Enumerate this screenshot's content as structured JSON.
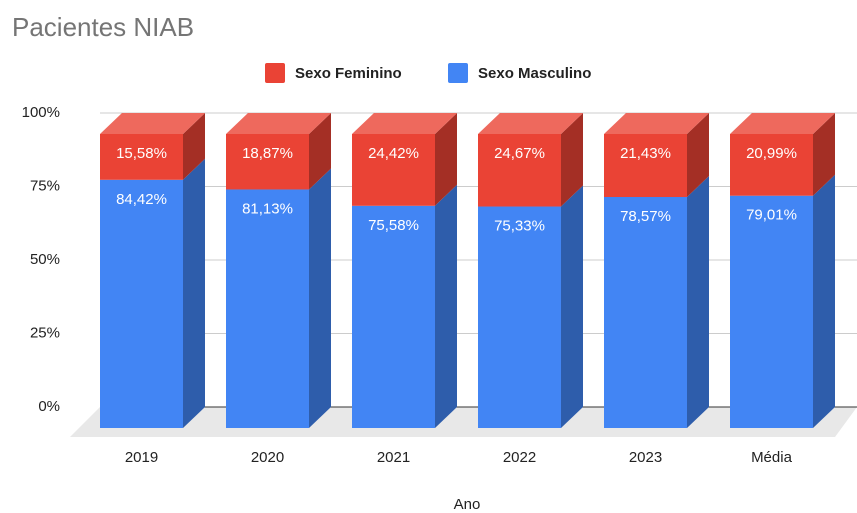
{
  "chart_data": {
    "type": "bar3d_stacked",
    "title": "Pacientes NIAB",
    "x_label": "Ano",
    "categories": [
      "2019",
      "2020",
      "2021",
      "2022",
      "2023",
      "Média"
    ],
    "series": [
      {
        "name": "Sexo Feminino",
        "color": "#ea4335",
        "values": [
          15.58,
          18.87,
          24.42,
          24.67,
          21.43,
          20.99
        ],
        "value_labels": [
          "15,58%",
          "18,87%",
          "24,42%",
          "24,67%",
          "21,43%",
          "20,99%"
        ]
      },
      {
        "name": "Sexo Masculino",
        "color": "#4285f4",
        "values": [
          84.42,
          81.13,
          75.58,
          75.33,
          78.57,
          79.01
        ],
        "value_labels": [
          "84,42%",
          "81,13%",
          "75,58%",
          "75,33%",
          "78,57%",
          "79,01%"
        ]
      }
    ],
    "ylim": [
      0,
      100
    ],
    "yticks": [
      {
        "value": 0,
        "label": "0%"
      },
      {
        "value": 25,
        "label": "25%"
      },
      {
        "value": 50,
        "label": "50%"
      },
      {
        "value": 75,
        "label": "75%"
      },
      {
        "value": 100,
        "label": "100%"
      }
    ],
    "legend": "top"
  }
}
